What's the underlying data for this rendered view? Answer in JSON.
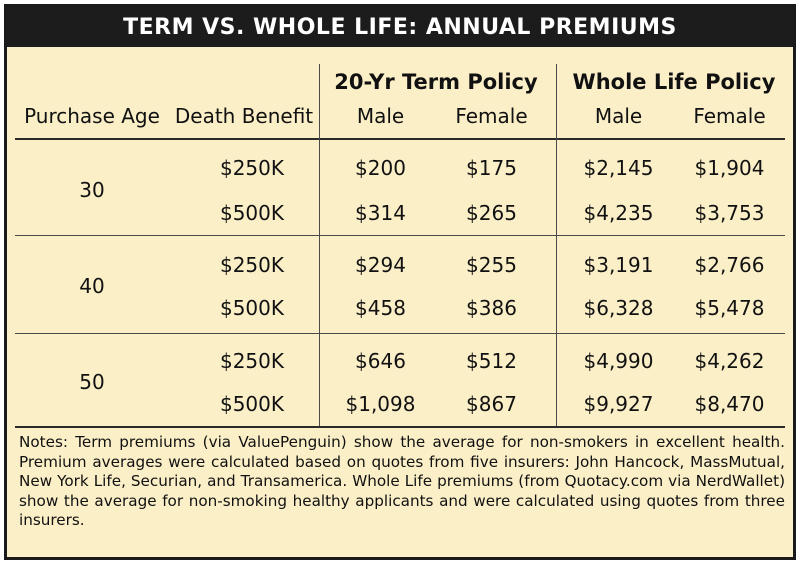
{
  "title": "TERM VS. WHOLE LIFE: ANNUAL PREMIUMS",
  "headers": {
    "purchase_age": "Purchase Age",
    "death_benefit": "Death Benefit",
    "term_group": "20-Yr Term Policy",
    "whole_group": "Whole Life Policy",
    "male": "Male",
    "female": "Female"
  },
  "rows": [
    {
      "age": "30",
      "benefits": [
        {
          "benefit": "$250K",
          "term_male": "$200",
          "term_female": "$175",
          "whole_male": "$2,145",
          "whole_female": "$1,904"
        },
        {
          "benefit": "$500K",
          "term_male": "$314",
          "term_female": "$265",
          "whole_male": "$4,235",
          "whole_female": "$3,753"
        }
      ]
    },
    {
      "age": "40",
      "benefits": [
        {
          "benefit": "$250K",
          "term_male": "$294",
          "term_female": "$255",
          "whole_male": "$3,191",
          "whole_female": "$2,766"
        },
        {
          "benefit": "$500K",
          "term_male": "$458",
          "term_female": "$386",
          "whole_male": "$6,328",
          "whole_female": "$5,478"
        }
      ]
    },
    {
      "age": "50",
      "benefits": [
        {
          "benefit": "$250K",
          "term_male": "$646",
          "term_female": "$512",
          "whole_male": "$4,990",
          "whole_female": "$4,262"
        },
        {
          "benefit": "$500K",
          "term_male": "$1,098",
          "term_female": "$867",
          "whole_male": "$9,927",
          "whole_female": "$8,470"
        }
      ]
    }
  ],
  "notes": "Notes: Term premiums (via ValuePenguin) show the average for non-smokers in excellent health. Premium averages were calculated based on quotes from five insurers: John Hancock, MassMutual, New York Life, Securian, and Transamerica. Whole Life premiums (from Quotacy.com via NerdWallet) show the average for non-smoking healthy applicants and were calculated using quotes from three insurers."
}
